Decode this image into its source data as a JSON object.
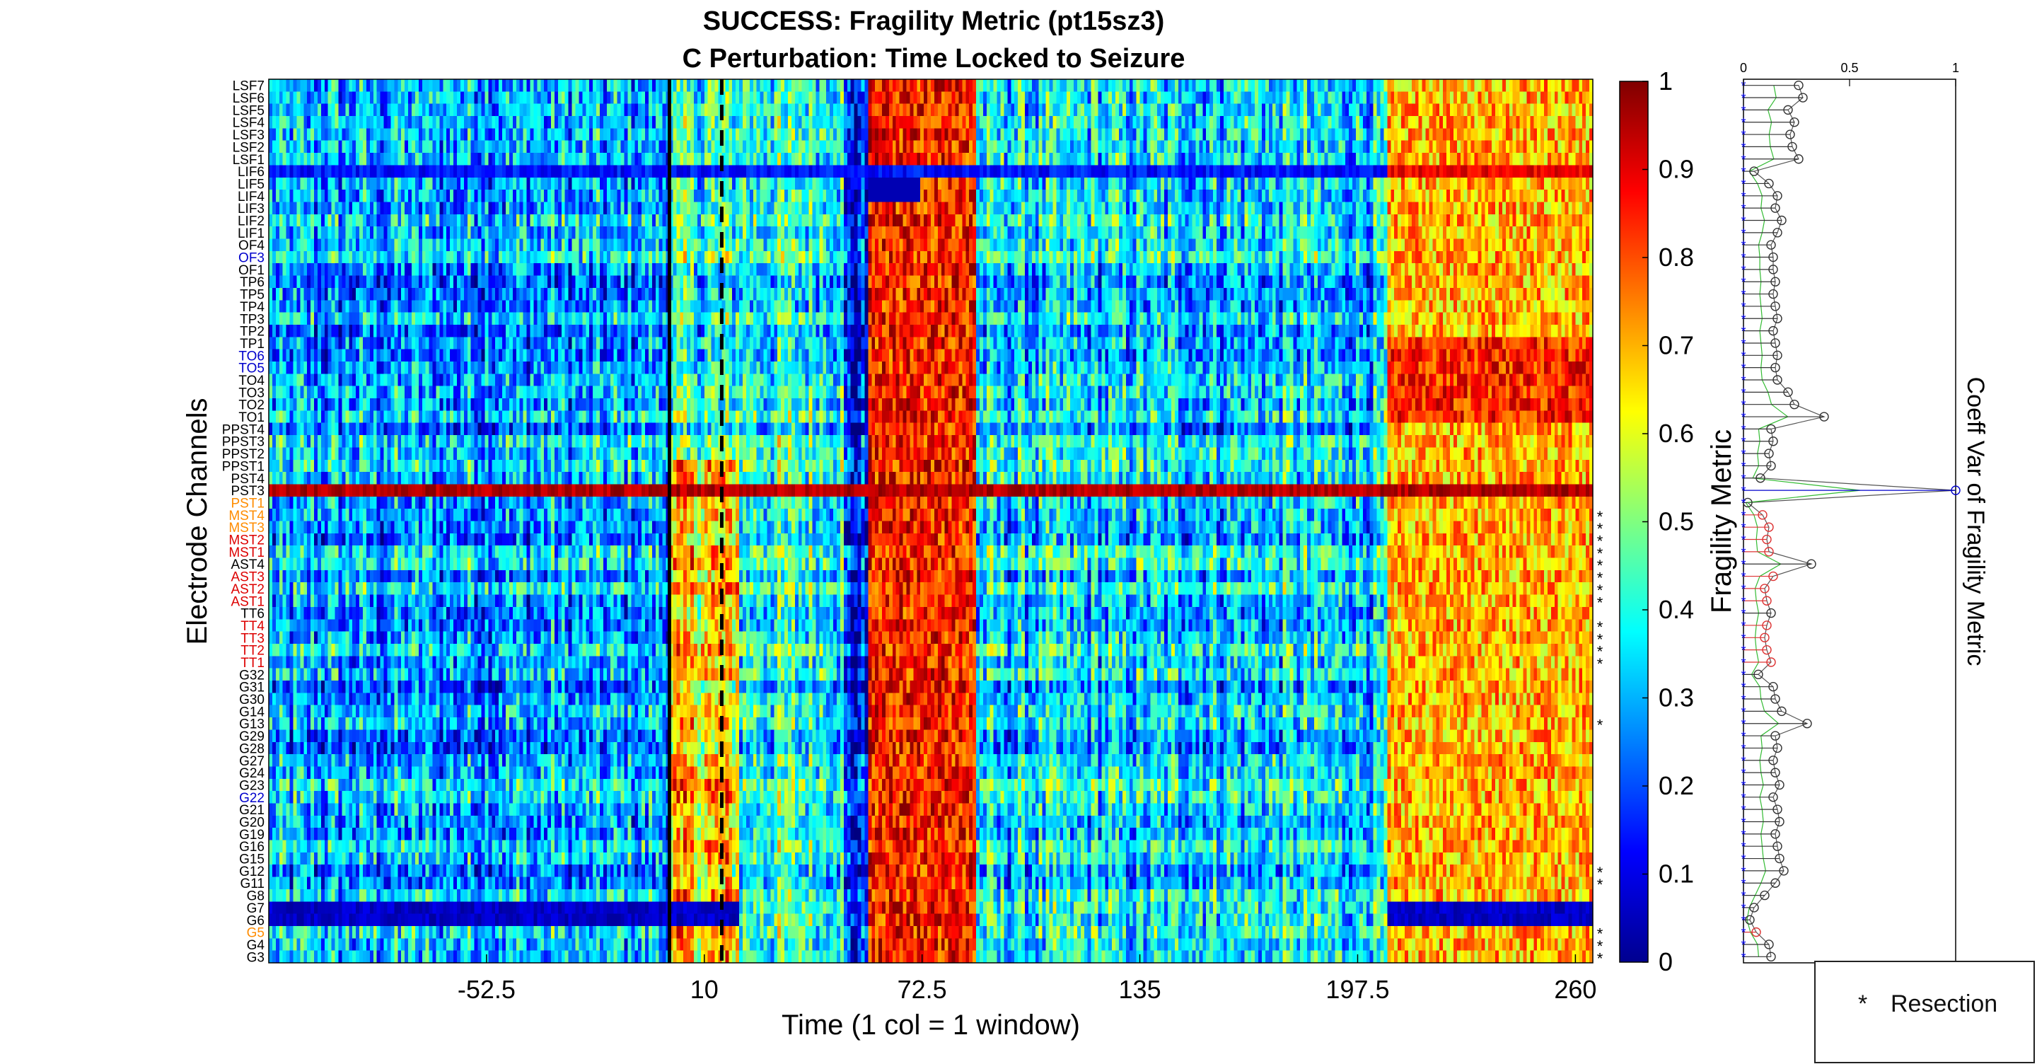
{
  "chart_data": [
    {
      "type": "heatmap",
      "title": "SUCCESS: Fragility Metric (pt15sz3)",
      "subtitle": "C Perturbation:  Time Locked to Seizure",
      "xlabel": "Time (1 col = 1 window)",
      "ylabel": "Electrode Channels",
      "x_ticks": [
        "-52.5",
        "10",
        "72.5",
        "135",
        "197.5",
        "260"
      ],
      "xlim": [
        -115,
        265
      ],
      "colorbar": {
        "label": "Fragility Metric",
        "range": [
          0,
          1
        ],
        "ticks": [
          "0",
          "0.1",
          "0.2",
          "0.3",
          "0.4",
          "0.5",
          "0.6",
          "0.7",
          "0.8",
          "0.9",
          "1"
        ],
        "colormap": "jet"
      },
      "markers": {
        "solid_line_x": 0,
        "dashed_line_x": 15
      },
      "channels": [
        {
          "name": "LSF7",
          "color": "#000000",
          "resected": false,
          "cv": 0.26
        },
        {
          "name": "LSF6",
          "color": "#000000",
          "resected": false,
          "cv": 0.28
        },
        {
          "name": "LSF5",
          "color": "#000000",
          "resected": false,
          "cv": 0.21
        },
        {
          "name": "LSF4",
          "color": "#000000",
          "resected": false,
          "cv": 0.24
        },
        {
          "name": "LSF3",
          "color": "#000000",
          "resected": false,
          "cv": 0.22
        },
        {
          "name": "LSF2",
          "color": "#000000",
          "resected": false,
          "cv": 0.23
        },
        {
          "name": "LSF1",
          "color": "#000000",
          "resected": false,
          "cv": 0.26
        },
        {
          "name": "LIF6",
          "color": "#000000",
          "resected": false,
          "cv": 0.05
        },
        {
          "name": "LIF5",
          "color": "#000000",
          "resected": false,
          "cv": 0.12
        },
        {
          "name": "LIF4",
          "color": "#000000",
          "resected": false,
          "cv": 0.16
        },
        {
          "name": "LIF3",
          "color": "#000000",
          "resected": false,
          "cv": 0.15
        },
        {
          "name": "LIF2",
          "color": "#000000",
          "resected": false,
          "cv": 0.18
        },
        {
          "name": "LIF1",
          "color": "#000000",
          "resected": false,
          "cv": 0.16
        },
        {
          "name": "OF4",
          "color": "#000000",
          "resected": false,
          "cv": 0.13
        },
        {
          "name": "OF3",
          "color": "#0000cc",
          "resected": false,
          "cv": 0.14
        },
        {
          "name": "OF1",
          "color": "#000000",
          "resected": false,
          "cv": 0.14
        },
        {
          "name": "TP6",
          "color": "#000000",
          "resected": false,
          "cv": 0.15
        },
        {
          "name": "TP5",
          "color": "#000000",
          "resected": false,
          "cv": 0.14
        },
        {
          "name": "TP4",
          "color": "#000000",
          "resected": false,
          "cv": 0.15
        },
        {
          "name": "TP3",
          "color": "#000000",
          "resected": false,
          "cv": 0.16
        },
        {
          "name": "TP2",
          "color": "#000000",
          "resected": false,
          "cv": 0.14
        },
        {
          "name": "TP1",
          "color": "#000000",
          "resected": false,
          "cv": 0.15
        },
        {
          "name": "TO6",
          "color": "#0000cc",
          "resected": false,
          "cv": 0.16
        },
        {
          "name": "TO5",
          "color": "#0000cc",
          "resected": false,
          "cv": 0.15
        },
        {
          "name": "TO4",
          "color": "#000000",
          "resected": false,
          "cv": 0.16
        },
        {
          "name": "TO3",
          "color": "#000000",
          "resected": false,
          "cv": 0.21
        },
        {
          "name": "TO2",
          "color": "#000000",
          "resected": false,
          "cv": 0.24
        },
        {
          "name": "TO1",
          "color": "#000000",
          "resected": false,
          "cv": 0.38
        },
        {
          "name": "PPST4",
          "color": "#000000",
          "resected": false,
          "cv": 0.13
        },
        {
          "name": "PPST3",
          "color": "#000000",
          "resected": false,
          "cv": 0.14
        },
        {
          "name": "PPST2",
          "color": "#000000",
          "resected": false,
          "cv": 0.12
        },
        {
          "name": "PPST1",
          "color": "#000000",
          "resected": false,
          "cv": 0.13
        },
        {
          "name": "PST4",
          "color": "#000000",
          "resected": false,
          "cv": 0.08
        },
        {
          "name": "PST3",
          "color": "#000000",
          "resected": false,
          "cv": 1.0
        },
        {
          "name": "PST1",
          "color": "#ff8c00",
          "resected": false,
          "cv": 0.02
        },
        {
          "name": "MST4",
          "color": "#ff8c00",
          "resected": true,
          "cv": 0.09
        },
        {
          "name": "MST3",
          "color": "#ff8c00",
          "resected": true,
          "cv": 0.12
        },
        {
          "name": "MST2",
          "color": "#dd0000",
          "resected": true,
          "cv": 0.11
        },
        {
          "name": "MST1",
          "color": "#dd0000",
          "resected": true,
          "cv": 0.12
        },
        {
          "name": "AST4",
          "color": "#000000",
          "resected": true,
          "cv": 0.32
        },
        {
          "name": "AST3",
          "color": "#dd0000",
          "resected": true,
          "cv": 0.14
        },
        {
          "name": "AST2",
          "color": "#dd0000",
          "resected": true,
          "cv": 0.1
        },
        {
          "name": "AST1",
          "color": "#dd0000",
          "resected": true,
          "cv": 0.11
        },
        {
          "name": "TT6",
          "color": "#000000",
          "resected": false,
          "cv": 0.13
        },
        {
          "name": "TT4",
          "color": "#dd0000",
          "resected": true,
          "cv": 0.11
        },
        {
          "name": "TT3",
          "color": "#dd0000",
          "resected": true,
          "cv": 0.1
        },
        {
          "name": "TT2",
          "color": "#dd0000",
          "resected": true,
          "cv": 0.11
        },
        {
          "name": "TT1",
          "color": "#dd0000",
          "resected": true,
          "cv": 0.13
        },
        {
          "name": "G32",
          "color": "#000000",
          "resected": false,
          "cv": 0.07
        },
        {
          "name": "G31",
          "color": "#000000",
          "resected": false,
          "cv": 0.14
        },
        {
          "name": "G30",
          "color": "#000000",
          "resected": false,
          "cv": 0.15
        },
        {
          "name": "G14",
          "color": "#000000",
          "resected": false,
          "cv": 0.18
        },
        {
          "name": "G13",
          "color": "#000000",
          "resected": true,
          "cv": 0.3
        },
        {
          "name": "G29",
          "color": "#000000",
          "resected": false,
          "cv": 0.15
        },
        {
          "name": "G28",
          "color": "#000000",
          "resected": false,
          "cv": 0.16
        },
        {
          "name": "G27",
          "color": "#000000",
          "resected": false,
          "cv": 0.14
        },
        {
          "name": "G24",
          "color": "#000000",
          "resected": false,
          "cv": 0.15
        },
        {
          "name": "G23",
          "color": "#000000",
          "resected": false,
          "cv": 0.17
        },
        {
          "name": "G22",
          "color": "#0000cc",
          "resected": false,
          "cv": 0.14
        },
        {
          "name": "G21",
          "color": "#000000",
          "resected": false,
          "cv": 0.16
        },
        {
          "name": "G20",
          "color": "#000000",
          "resected": false,
          "cv": 0.17
        },
        {
          "name": "G19",
          "color": "#000000",
          "resected": false,
          "cv": 0.15
        },
        {
          "name": "G16",
          "color": "#000000",
          "resected": false,
          "cv": 0.16
        },
        {
          "name": "G15",
          "color": "#000000",
          "resected": false,
          "cv": 0.17
        },
        {
          "name": "G12",
          "color": "#000000",
          "resected": true,
          "cv": 0.19
        },
        {
          "name": "G11",
          "color": "#000000",
          "resected": true,
          "cv": 0.15
        },
        {
          "name": "G8",
          "color": "#000000",
          "resected": false,
          "cv": 0.1
        },
        {
          "name": "G7",
          "color": "#000000",
          "resected": false,
          "cv": 0.05
        },
        {
          "name": "G6",
          "color": "#000000",
          "resected": false,
          "cv": 0.03
        },
        {
          "name": "G5",
          "color": "#ff8c00",
          "resected": true,
          "cv": 0.06
        },
        {
          "name": "G4",
          "color": "#000000",
          "resected": true,
          "cv": 0.12
        },
        {
          "name": "G3",
          "color": "#000000",
          "resected": true,
          "cv": 0.13
        }
      ]
    },
    {
      "type": "scatter",
      "ylabel": "Coeff Var of Fragility Metric",
      "x_ticks": [
        "0",
        "0.5",
        "1"
      ],
      "xlim": [
        0,
        1
      ]
    }
  ],
  "legend": {
    "marker": "*",
    "label": "Resection"
  }
}
